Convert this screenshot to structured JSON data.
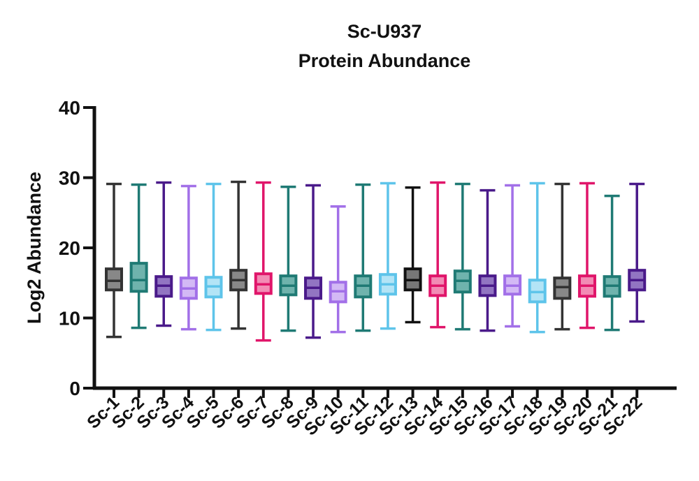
{
  "chart_data": {
    "type": "box",
    "title": "Sc-U937",
    "subtitle": "Protein Abundance",
    "xlabel": "",
    "ylabel": "Log2 Abundance",
    "ylim": [
      0,
      40
    ],
    "yticks": [
      0,
      10,
      20,
      30,
      40
    ],
    "grid": false,
    "categories": [
      "Sc-1",
      "Sc-2",
      "Sc-3",
      "Sc-4",
      "Sc-5",
      "Sc-6",
      "Sc-7",
      "Sc-8",
      "Sc-9",
      "Sc-10",
      "Sc-11",
      "Sc-12",
      "Sc-13",
      "Sc-14",
      "Sc-15",
      "Sc-16",
      "Sc-17",
      "Sc-18",
      "Sc-19",
      "Sc-20",
      "Sc-21",
      "Sc-22"
    ],
    "boxes": [
      {
        "min": 7.3,
        "q1": 14.0,
        "median": 15.3,
        "q3": 17.0,
        "max": 29.1,
        "color": "#333333",
        "fill": "#888888"
      },
      {
        "min": 8.6,
        "q1": 13.8,
        "median": 15.4,
        "q3": 17.8,
        "max": 29.0,
        "color": "#1f7a74",
        "fill": "#6fb3ad"
      },
      {
        "min": 8.9,
        "q1": 13.1,
        "median": 14.6,
        "q3": 15.9,
        "max": 29.3,
        "color": "#4a1a8a",
        "fill": "#9275c2"
      },
      {
        "min": 8.4,
        "q1": 12.8,
        "median": 14.2,
        "q3": 15.7,
        "max": 28.8,
        "color": "#a270e8",
        "fill": "#d3b9f5"
      },
      {
        "min": 8.3,
        "q1": 13.0,
        "median": 14.5,
        "q3": 15.8,
        "max": 29.1,
        "color": "#5ec4ea",
        "fill": "#b3e4f6"
      },
      {
        "min": 8.5,
        "q1": 14.0,
        "median": 15.4,
        "q3": 16.8,
        "max": 29.4,
        "color": "#333333",
        "fill": "#888888"
      },
      {
        "min": 6.8,
        "q1": 13.5,
        "median": 14.8,
        "q3": 16.3,
        "max": 29.3,
        "color": "#e0156a",
        "fill": "#f28cb5"
      },
      {
        "min": 8.2,
        "q1": 13.3,
        "median": 14.6,
        "q3": 16.0,
        "max": 28.7,
        "color": "#1f7a74",
        "fill": "#6fb3ad"
      },
      {
        "min": 7.2,
        "q1": 12.8,
        "median": 14.3,
        "q3": 15.7,
        "max": 28.9,
        "color": "#4a1a8a",
        "fill": "#9275c2"
      },
      {
        "min": 8.0,
        "q1": 12.3,
        "median": 13.8,
        "q3": 15.1,
        "max": 25.9,
        "color": "#a270e8",
        "fill": "#d3b9f5"
      },
      {
        "min": 8.2,
        "q1": 13.0,
        "median": 14.6,
        "q3": 16.0,
        "max": 29.0,
        "color": "#1f7a74",
        "fill": "#6fb3ad"
      },
      {
        "min": 8.5,
        "q1": 13.4,
        "median": 14.8,
        "q3": 16.2,
        "max": 29.2,
        "color": "#5ec4ea",
        "fill": "#b3e4f6"
      },
      {
        "min": 9.4,
        "q1": 14.0,
        "median": 15.4,
        "q3": 17.0,
        "max": 28.6,
        "color": "#111111",
        "fill": "#777777"
      },
      {
        "min": 8.7,
        "q1": 13.2,
        "median": 14.6,
        "q3": 16.0,
        "max": 29.3,
        "color": "#e0156a",
        "fill": "#f28cb5"
      },
      {
        "min": 8.4,
        "q1": 13.7,
        "median": 15.3,
        "q3": 16.7,
        "max": 29.1,
        "color": "#1f7a74",
        "fill": "#6fb3ad"
      },
      {
        "min": 8.2,
        "q1": 13.2,
        "median": 14.6,
        "q3": 16.0,
        "max": 28.2,
        "color": "#4a1a8a",
        "fill": "#9275c2"
      },
      {
        "min": 8.8,
        "q1": 13.4,
        "median": 14.6,
        "q3": 16.0,
        "max": 28.9,
        "color": "#a270e8",
        "fill": "#d3b9f5"
      },
      {
        "min": 8.0,
        "q1": 12.3,
        "median": 13.7,
        "q3": 15.4,
        "max": 29.2,
        "color": "#5ec4ea",
        "fill": "#b3e4f6"
      },
      {
        "min": 8.4,
        "q1": 12.8,
        "median": 14.4,
        "q3": 15.7,
        "max": 29.1,
        "color": "#333333",
        "fill": "#888888"
      },
      {
        "min": 8.6,
        "q1": 13.1,
        "median": 14.6,
        "q3": 16.0,
        "max": 29.2,
        "color": "#e0156a",
        "fill": "#f28cb5"
      },
      {
        "min": 8.3,
        "q1": 13.1,
        "median": 14.6,
        "q3": 15.9,
        "max": 27.4,
        "color": "#1f7a74",
        "fill": "#6fb3ad"
      },
      {
        "min": 9.5,
        "q1": 14.0,
        "median": 15.4,
        "q3": 16.8,
        "max": 29.1,
        "color": "#4a1a8a",
        "fill": "#9275c2"
      }
    ]
  }
}
